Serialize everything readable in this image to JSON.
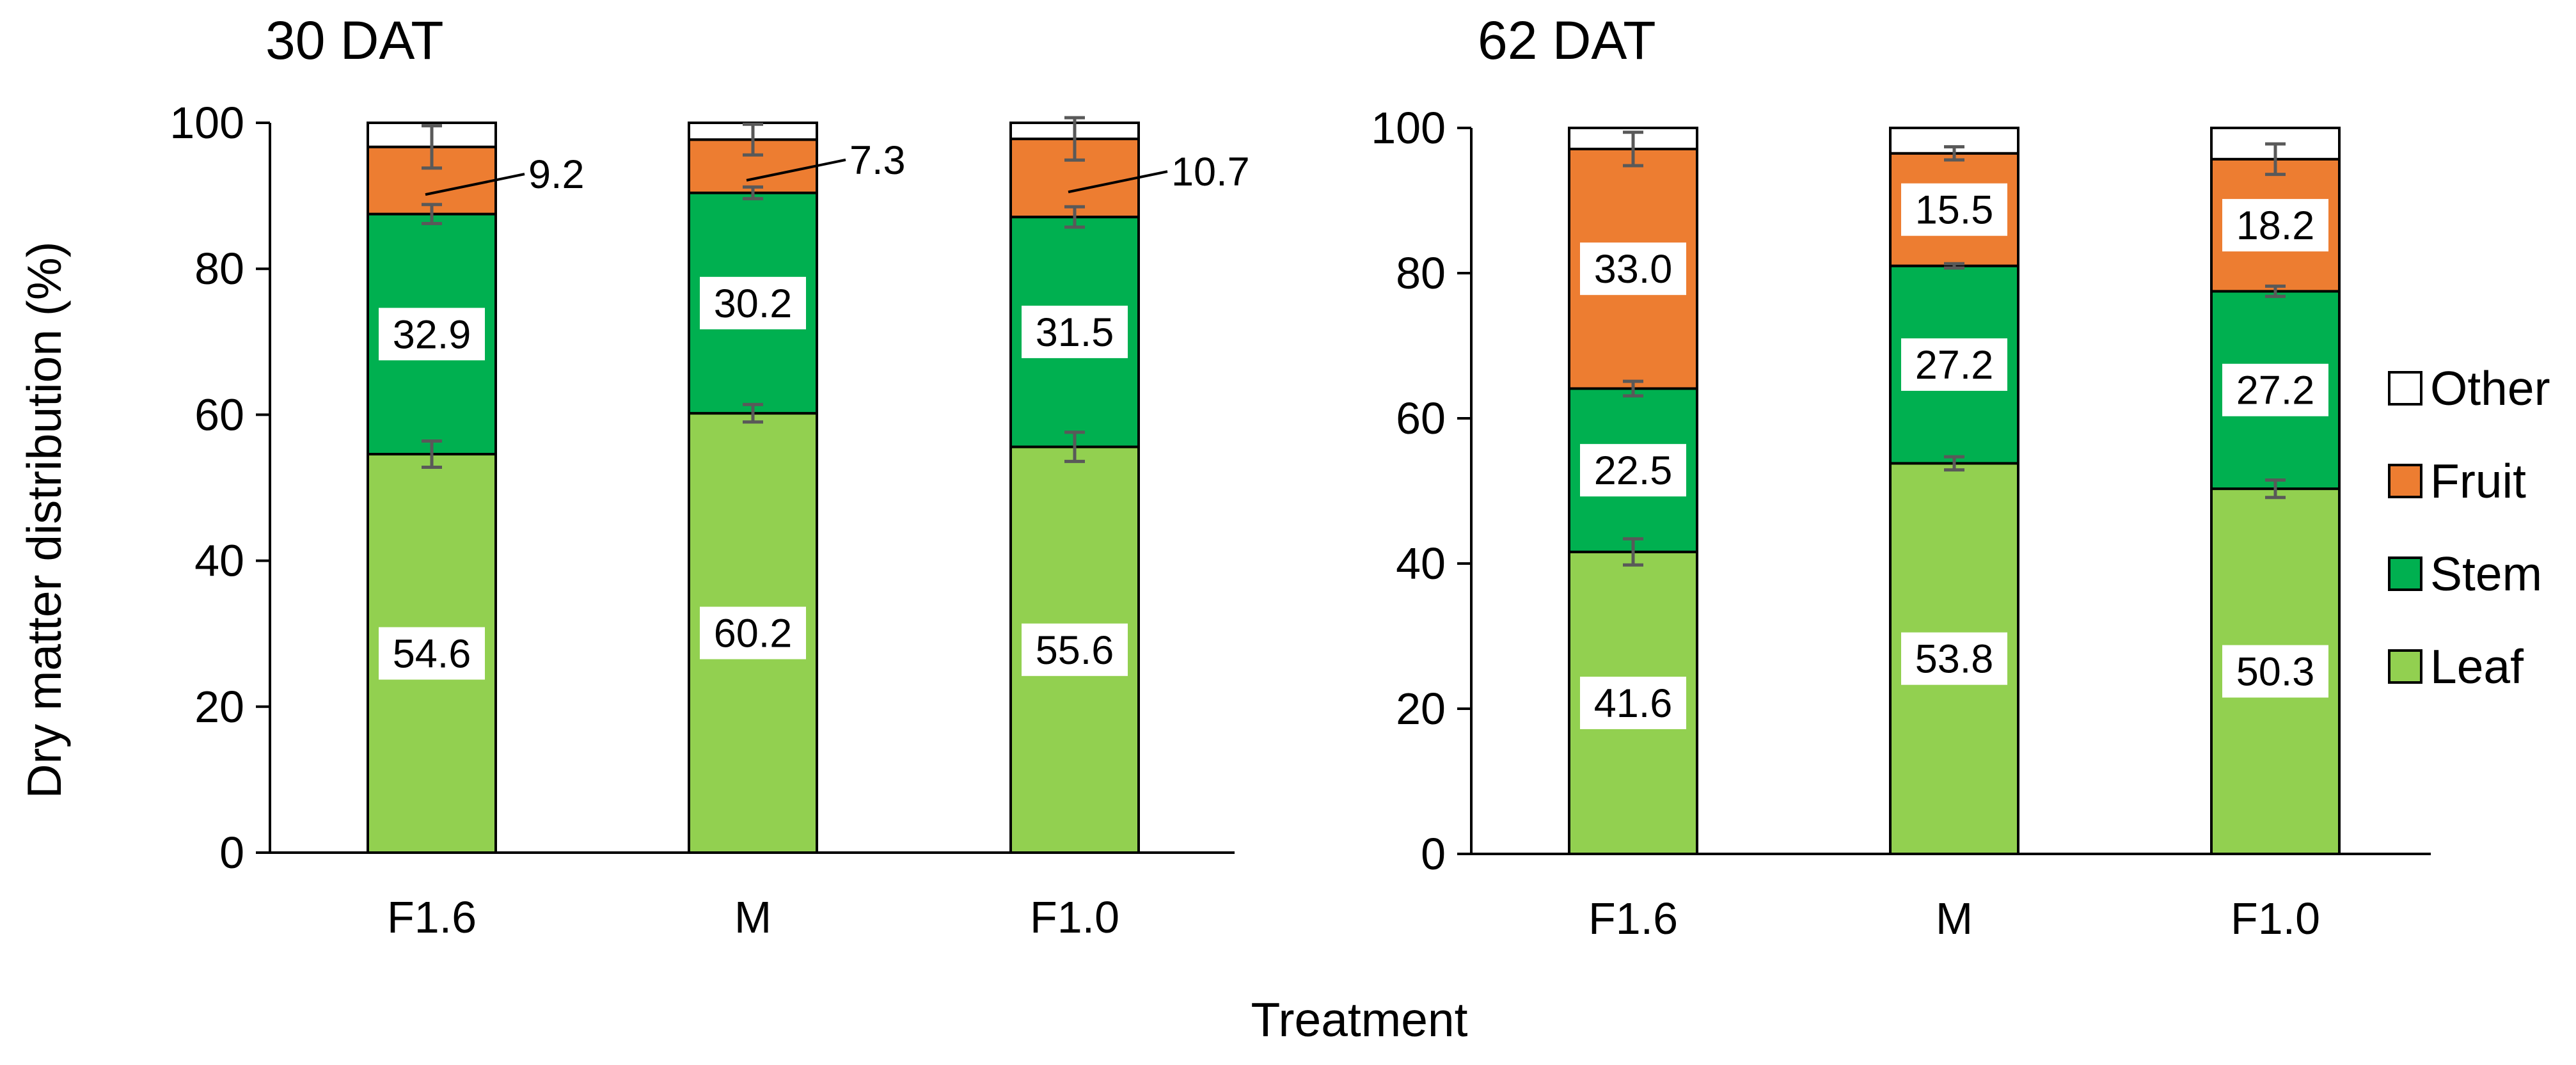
{
  "chart_data": [
    {
      "type": "bar",
      "stacked": true,
      "title": "30 DAT",
      "categories": [
        "F1.6",
        "M",
        "F1.0"
      ],
      "ylim": [
        0,
        100
      ],
      "yticks": [
        0,
        20,
        40,
        60,
        80,
        100
      ],
      "series": [
        {
          "name": "Leaf",
          "color": "#92d050",
          "values": [
            54.6,
            60.2,
            55.6
          ],
          "errors": [
            1.8,
            1.2,
            2.0
          ],
          "labels": [
            "54.6",
            "60.2",
            "55.6"
          ]
        },
        {
          "name": "Stem",
          "color": "#00b050",
          "values": [
            32.9,
            30.2,
            31.5
          ],
          "errors": [
            1.3,
            0.8,
            1.4
          ],
          "labels": [
            "32.9",
            "30.2",
            "31.5"
          ]
        },
        {
          "name": "Fruit",
          "color": "#ed7d31",
          "values": [
            9.2,
            7.3,
            10.7
          ],
          "errors": [
            2.9,
            2.1,
            2.9
          ],
          "labels": [
            "9.2",
            "7.3",
            "10.7"
          ]
        },
        {
          "name": "Other",
          "color": "#ffffff",
          "values": [
            3.3,
            2.3,
            2.2
          ],
          "errors": [
            0,
            0,
            0
          ],
          "labels": [
            "",
            "",
            ""
          ]
        }
      ]
    },
    {
      "type": "bar",
      "stacked": true,
      "title": "62 DAT",
      "categories": [
        "F1.6",
        "M",
        "F1.0"
      ],
      "ylim": [
        0,
        100
      ],
      "yticks": [
        0,
        20,
        40,
        60,
        80,
        100
      ],
      "series": [
        {
          "name": "Leaf",
          "color": "#92d050",
          "values": [
            41.6,
            53.8,
            50.3
          ],
          "errors": [
            1.8,
            0.9,
            1.2
          ],
          "labels": [
            "41.6",
            "53.8",
            "50.3"
          ]
        },
        {
          "name": "Stem",
          "color": "#00b050",
          "values": [
            22.5,
            27.2,
            27.2
          ],
          "errors": [
            1.0,
            0.3,
            0.7
          ],
          "labels": [
            "22.5",
            "27.2",
            "27.2"
          ]
        },
        {
          "name": "Fruit",
          "color": "#ed7d31",
          "values": [
            33.0,
            15.5,
            18.2
          ],
          "errors": [
            2.3,
            0.9,
            2.1
          ],
          "labels": [
            "33.0",
            "15.5",
            "18.2"
          ]
        },
        {
          "name": "Other",
          "color": "#ffffff",
          "values": [
            2.9,
            3.5,
            4.3
          ],
          "errors": [
            0,
            0,
            0
          ],
          "labels": [
            "",
            "",
            ""
          ]
        }
      ]
    }
  ],
  "y_axis_label": "Dry matter distribution (%)",
  "x_axis_label": "Treatment",
  "legend": [
    {
      "name": "Other",
      "color": "#ffffff"
    },
    {
      "name": "Fruit",
      "color": "#ed7d31"
    },
    {
      "name": "Stem",
      "color": "#00b050"
    },
    {
      "name": "Leaf",
      "color": "#92d050"
    }
  ]
}
